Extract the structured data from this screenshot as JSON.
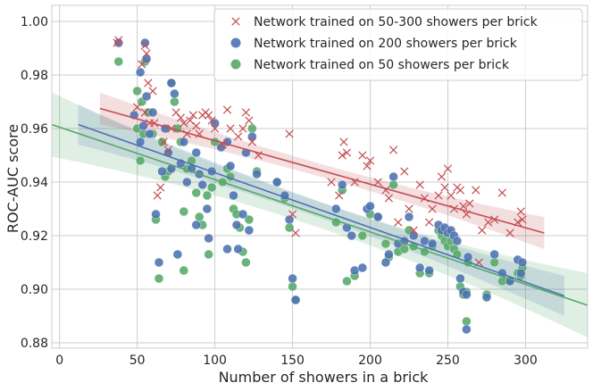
{
  "chart_data": {
    "type": "scatter",
    "title": "",
    "xlabel": "Number of showers in a brick",
    "ylabel": "ROC-AUC score",
    "xlim": [
      -5,
      340
    ],
    "ylim": [
      0.878,
      1.006
    ],
    "xticks": [
      "0",
      "50",
      "100",
      "150",
      "200",
      "250",
      "300"
    ],
    "xtick_values": [
      0,
      50,
      100,
      150,
      200,
      250,
      300
    ],
    "yticks": [
      "0.88",
      "0.90",
      "0.92",
      "0.94",
      "0.96",
      "0.98",
      "1.00"
    ],
    "ytick_values": [
      0.88,
      0.9,
      0.92,
      0.94,
      0.96,
      0.98,
      1.0
    ],
    "grid": true,
    "legend_position": "top-right",
    "series": [
      {
        "name": "Network trained on 50-300 showers per brick",
        "marker": "x",
        "color": "#c44e52",
        "fit": {
          "x_start": 26,
          "x_end": 312,
          "y_start": 0.9675,
          "y_end": 0.921,
          "band": 0.004
        },
        "points": [
          [
            37,
            0.992
          ],
          [
            38,
            0.993
          ],
          [
            55,
            0.991
          ],
          [
            56,
            0.988
          ],
          [
            53,
            0.984
          ],
          [
            57,
            0.977
          ],
          [
            60,
            0.974
          ],
          [
            50,
            0.968
          ],
          [
            55,
            0.966
          ],
          [
            58,
            0.962
          ],
          [
            61,
            0.962
          ],
          [
            63,
            0.935
          ],
          [
            65,
            0.938
          ],
          [
            67,
            0.955
          ],
          [
            70,
            0.952
          ],
          [
            72,
            0.96
          ],
          [
            75,
            0.966
          ],
          [
            78,
            0.964
          ],
          [
            80,
            0.962
          ],
          [
            82,
            0.958
          ],
          [
            84,
            0.963
          ],
          [
            86,
            0.965
          ],
          [
            88,
            0.961
          ],
          [
            90,
            0.958
          ],
          [
            92,
            0.965
          ],
          [
            94,
            0.966
          ],
          [
            96,
            0.965
          ],
          [
            98,
            0.963
          ],
          [
            100,
            0.96
          ],
          [
            105,
            0.954
          ],
          [
            108,
            0.967
          ],
          [
            110,
            0.96
          ],
          [
            115,
            0.957
          ],
          [
            118,
            0.96
          ],
          [
            120,
            0.966
          ],
          [
            122,
            0.963
          ],
          [
            124,
            0.955
          ],
          [
            128,
            0.95
          ],
          [
            148,
            0.958
          ],
          [
            150,
            0.928
          ],
          [
            152,
            0.921
          ],
          [
            175,
            0.94
          ],
          [
            180,
            0.935
          ],
          [
            182,
            0.95
          ],
          [
            183,
            0.955
          ],
          [
            185,
            0.951
          ],
          [
            190,
            0.94
          ],
          [
            195,
            0.95
          ],
          [
            198,
            0.946
          ],
          [
            200,
            0.948
          ],
          [
            205,
            0.94
          ],
          [
            210,
            0.937
          ],
          [
            212,
            0.934
          ],
          [
            215,
            0.952
          ],
          [
            218,
            0.925
          ],
          [
            222,
            0.944
          ],
          [
            225,
            0.93
          ],
          [
            228,
            0.922
          ],
          [
            232,
            0.939
          ],
          [
            235,
            0.934
          ],
          [
            238,
            0.925
          ],
          [
            240,
            0.93
          ],
          [
            244,
            0.935
          ],
          [
            246,
            0.942
          ],
          [
            248,
            0.938
          ],
          [
            250,
            0.945
          ],
          [
            252,
            0.935
          ],
          [
            254,
            0.93
          ],
          [
            256,
            0.938
          ],
          [
            258,
            0.937
          ],
          [
            260,
            0.931
          ],
          [
            262,
            0.928
          ],
          [
            264,
            0.932
          ],
          [
            268,
            0.937
          ],
          [
            270,
            0.91
          ],
          [
            272,
            0.922
          ],
          [
            276,
            0.925
          ],
          [
            280,
            0.926
          ],
          [
            285,
            0.936
          ],
          [
            290,
            0.921
          ],
          [
            295,
            0.925
          ],
          [
            297,
            0.929
          ],
          [
            298,
            0.926
          ]
        ]
      },
      {
        "name": "Network trained on 200 showers per brick",
        "marker": "o",
        "color": "#4c72b0",
        "fit": {
          "x_start": 12,
          "x_end": 325,
          "y_start": 0.9615,
          "y_end": 0.8975,
          "band": 0.005
        },
        "points": [
          [
            38,
            0.992
          ],
          [
            55,
            0.992
          ],
          [
            56,
            0.986
          ],
          [
            52,
            0.981
          ],
          [
            56,
            0.972
          ],
          [
            60,
            0.966
          ],
          [
            48,
            0.965
          ],
          [
            54,
            0.961
          ],
          [
            52,
            0.955
          ],
          [
            58,
            0.958
          ],
          [
            62,
            0.928
          ],
          [
            64,
            0.91
          ],
          [
            66,
            0.944
          ],
          [
            72,
            0.977
          ],
          [
            74,
            0.973
          ],
          [
            68,
            0.96
          ],
          [
            70,
            0.951
          ],
          [
            72,
            0.945
          ],
          [
            78,
            0.947
          ],
          [
            80,
            0.955
          ],
          [
            82,
            0.94
          ],
          [
            85,
            0.945
          ],
          [
            88,
            0.951
          ],
          [
            90,
            0.943
          ],
          [
            92,
            0.939
          ],
          [
            95,
            0.93
          ],
          [
            96,
            0.919
          ],
          [
            98,
            0.944
          ],
          [
            100,
            0.962
          ],
          [
            104,
            0.953
          ],
          [
            108,
            0.955
          ],
          [
            110,
            0.946
          ],
          [
            112,
            0.935
          ],
          [
            114,
            0.924
          ],
          [
            118,
            0.928
          ],
          [
            120,
            0.951
          ],
          [
            122,
            0.922
          ],
          [
            124,
            0.957
          ],
          [
            76,
            0.913
          ],
          [
            88,
            0.924
          ],
          [
            108,
            0.915
          ],
          [
            115,
            0.915
          ],
          [
            127,
            0.943
          ],
          [
            140,
            0.94
          ],
          [
            145,
            0.935
          ],
          [
            148,
            0.926
          ],
          [
            150,
            0.904
          ],
          [
            152,
            0.896
          ],
          [
            178,
            0.93
          ],
          [
            182,
            0.939
          ],
          [
            185,
            0.923
          ],
          [
            188,
            0.92
          ],
          [
            190,
            0.907
          ],
          [
            195,
            0.908
          ],
          [
            198,
            0.93
          ],
          [
            200,
            0.931
          ],
          [
            205,
            0.927
          ],
          [
            210,
            0.91
          ],
          [
            212,
            0.913
          ],
          [
            215,
            0.942
          ],
          [
            218,
            0.917
          ],
          [
            222,
            0.918
          ],
          [
            225,
            0.927
          ],
          [
            228,
            0.92
          ],
          [
            232,
            0.908
          ],
          [
            235,
            0.918
          ],
          [
            238,
            0.907
          ],
          [
            240,
            0.917
          ],
          [
            244,
            0.924
          ],
          [
            246,
            0.922
          ],
          [
            248,
            0.923
          ],
          [
            250,
            0.921
          ],
          [
            252,
            0.922
          ],
          [
            254,
            0.92
          ],
          [
            256,
            0.918
          ],
          [
            258,
            0.904
          ],
          [
            260,
            0.899
          ],
          [
            262,
            0.898
          ],
          [
            262,
            0.885
          ],
          [
            263,
            0.912
          ],
          [
            275,
            0.897
          ],
          [
            280,
            0.913
          ],
          [
            285,
            0.906
          ],
          [
            290,
            0.903
          ],
          [
            295,
            0.911
          ],
          [
            297,
            0.906
          ],
          [
            298,
            0.91
          ]
        ]
      },
      {
        "name": "Network trained on 50 showers per brick",
        "marker": "o",
        "color": "#55a868",
        "fit": {
          "x_start": -5,
          "x_end": 340,
          "y_start": 0.9615,
          "y_end": 0.894,
          "band": 0.008
        },
        "points": [
          [
            38,
            0.985
          ],
          [
            55,
            0.985
          ],
          [
            50,
            0.974
          ],
          [
            53,
            0.97
          ],
          [
            57,
            0.966
          ],
          [
            50,
            0.96
          ],
          [
            54,
            0.958
          ],
          [
            60,
            0.958
          ],
          [
            52,
            0.948
          ],
          [
            62,
            0.926
          ],
          [
            64,
            0.904
          ],
          [
            66,
            0.955
          ],
          [
            68,
            0.942
          ],
          [
            70,
            0.944
          ],
          [
            72,
            0.977
          ],
          [
            74,
            0.97
          ],
          [
            76,
            0.96
          ],
          [
            78,
            0.955
          ],
          [
            80,
            0.929
          ],
          [
            80,
            0.907
          ],
          [
            82,
            0.945
          ],
          [
            85,
            0.948
          ],
          [
            88,
            0.936
          ],
          [
            90,
            0.927
          ],
          [
            92,
            0.924
          ],
          [
            95,
            0.935
          ],
          [
            96,
            0.913
          ],
          [
            98,
            0.938
          ],
          [
            100,
            0.955
          ],
          [
            105,
            0.94
          ],
          [
            108,
            0.945
          ],
          [
            110,
            0.942
          ],
          [
            112,
            0.93
          ],
          [
            114,
            0.928
          ],
          [
            116,
            0.923
          ],
          [
            118,
            0.914
          ],
          [
            120,
            0.91
          ],
          [
            122,
            0.926
          ],
          [
            124,
            0.96
          ],
          [
            127,
            0.944
          ],
          [
            140,
            0.94
          ],
          [
            145,
            0.934
          ],
          [
            148,
            0.923
          ],
          [
            150,
            0.901
          ],
          [
            152,
            0.896
          ],
          [
            178,
            0.925
          ],
          [
            182,
            0.937
          ],
          [
            185,
            0.903
          ],
          [
            190,
            0.905
          ],
          [
            195,
            0.92
          ],
          [
            200,
            0.928
          ],
          [
            205,
            0.927
          ],
          [
            210,
            0.917
          ],
          [
            212,
            0.912
          ],
          [
            215,
            0.939
          ],
          [
            218,
            0.914
          ],
          [
            222,
            0.915
          ],
          [
            225,
            0.922
          ],
          [
            228,
            0.916
          ],
          [
            232,
            0.906
          ],
          [
            235,
            0.914
          ],
          [
            238,
            0.906
          ],
          [
            240,
            0.916
          ],
          [
            244,
            0.922
          ],
          [
            246,
            0.92
          ],
          [
            248,
            0.918
          ],
          [
            250,
            0.916
          ],
          [
            252,
            0.918
          ],
          [
            254,
            0.915
          ],
          [
            256,
            0.913
          ],
          [
            258,
            0.901
          ],
          [
            260,
            0.898
          ],
          [
            262,
            0.899
          ],
          [
            262,
            0.888
          ],
          [
            263,
            0.91
          ],
          [
            275,
            0.898
          ],
          [
            280,
            0.91
          ],
          [
            285,
            0.903
          ],
          [
            290,
            0.903
          ],
          [
            295,
            0.906
          ],
          [
            297,
            0.905
          ],
          [
            298,
            0.908
          ]
        ]
      }
    ]
  }
}
